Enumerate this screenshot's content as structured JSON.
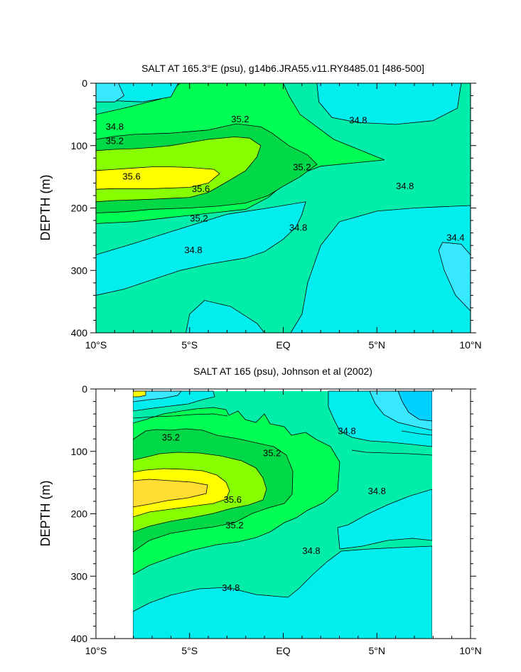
{
  "chart_data": [
    {
      "type": "contour",
      "title": "SALT AT 165.3°E (psu), g14b6.JRA55.v11.RY8485.01 [486-500]",
      "ylabel": "DEPTH (m)",
      "xlabel": "",
      "xlim": [
        -10,
        10
      ],
      "ylim": [
        0,
        400
      ],
      "y_inverted": true,
      "x_ticks": [
        {
          "value": -10,
          "label": "10°S"
        },
        {
          "value": -5,
          "label": "5°S"
        },
        {
          "value": 0,
          "label": "EQ"
        },
        {
          "value": 5,
          "label": "5°N"
        },
        {
          "value": 10,
          "label": "10°N"
        }
      ],
      "y_ticks": [
        {
          "value": 0,
          "label": "0"
        },
        {
          "value": 100,
          "label": "100"
        },
        {
          "value": 200,
          "label": "200"
        },
        {
          "value": 300,
          "label": "300"
        },
        {
          "value": 400,
          "label": "400"
        }
      ],
      "contour_interval": 0.2,
      "levels": [
        34.2,
        34.4,
        34.6,
        34.8,
        35.0,
        35.2,
        35.4,
        35.6
      ],
      "contour_labels": [
        {
          "value": "34.8",
          "x": -9.0,
          "y": 70
        },
        {
          "value": "35.2",
          "x": -9.0,
          "y": 93
        },
        {
          "value": "35.2",
          "x": -2.3,
          "y": 58
        },
        {
          "value": "34.8",
          "x": 4.0,
          "y": 60
        },
        {
          "value": "35.6",
          "x": -8.1,
          "y": 150
        },
        {
          "value": "35.6",
          "x": -4.4,
          "y": 170
        },
        {
          "value": "35.2",
          "x": 1.0,
          "y": 135
        },
        {
          "value": "34.8",
          "x": 6.5,
          "y": 165
        },
        {
          "value": "35.2",
          "x": -4.5,
          "y": 217
        },
        {
          "value": "34.8",
          "x": 0.8,
          "y": 232
        },
        {
          "value": "34.4",
          "x": 9.2,
          "y": 248
        },
        {
          "value": "34.8",
          "x": -4.8,
          "y": 268
        }
      ],
      "filled_regions": [
        {
          "level": 35.0,
          "color": "#00ff55",
          "outline": [
            [
              -10,
              50
            ],
            [
              -8.5,
              40
            ],
            [
              -6.5,
              25
            ],
            [
              -5.5,
              0
            ],
            [
              -2,
              0
            ],
            [
              0,
              0
            ],
            [
              0.3,
              20
            ],
            [
              0.9,
              50
            ],
            [
              2.7,
              90
            ],
            [
              5.4,
              123
            ],
            [
              2,
              133
            ],
            [
              0.5,
              150
            ],
            [
              -0.8,
              183
            ],
            [
              -2,
              202
            ],
            [
              -3.5,
              207
            ],
            [
              -6,
              215
            ],
            [
              -8,
              222
            ],
            [
              -10,
              225
            ]
          ]
        },
        {
          "level": 35.2,
          "color": "#00d848",
          "outline": [
            [
              -10,
              90
            ],
            [
              -9,
              85
            ],
            [
              -8,
              82
            ],
            [
              -6,
              80
            ],
            [
              -4,
              75
            ],
            [
              -2.5,
              65
            ],
            [
              -1.2,
              70
            ],
            [
              -0.6,
              80
            ],
            [
              0.3,
              100
            ],
            [
              1.3,
              115
            ],
            [
              1.8,
              130
            ],
            [
              0.9,
              150
            ],
            [
              0,
              165
            ],
            [
              -0.8,
              180
            ],
            [
              -2,
              192
            ],
            [
              -3.5,
              197
            ],
            [
              -5,
              200
            ],
            [
              -7,
              202
            ],
            [
              -8.5,
              206
            ],
            [
              -10,
              208
            ]
          ]
        },
        {
          "level": 35.4,
          "color": "#88ff00",
          "outline": [
            [
              -10,
              108
            ],
            [
              -9,
              106
            ],
            [
              -8,
              105
            ],
            [
              -7,
              103
            ],
            [
              -6,
              100
            ],
            [
              -5,
              95
            ],
            [
              -4,
              90
            ],
            [
              -2.6,
              86
            ],
            [
              -1.8,
              88
            ],
            [
              -1.2,
              100
            ],
            [
              -1.4,
              118
            ],
            [
              -2,
              140
            ],
            [
              -3,
              158
            ],
            [
              -4,
              175
            ],
            [
              -5,
              183
            ],
            [
              -7,
              186
            ],
            [
              -9,
              188
            ],
            [
              -10,
              190
            ]
          ]
        },
        {
          "level": 35.6,
          "color": "#ffff00",
          "outline": [
            [
              -10,
              140
            ],
            [
              -9,
              138
            ],
            [
              -8,
              136
            ],
            [
              -7,
              134
            ],
            [
              -6,
              134
            ],
            [
              -5,
              135
            ],
            [
              -3.7,
              138
            ],
            [
              -3.4,
              145
            ],
            [
              -4,
              160
            ],
            [
              -5,
              167
            ],
            [
              -7,
              169
            ],
            [
              -9,
              169
            ],
            [
              -10,
              170
            ]
          ]
        },
        {
          "level": 34.6,
          "color": "#00eeee",
          "outline": [
            [
              1.8,
              0
            ],
            [
              1.9,
              30
            ],
            [
              2.6,
              55
            ],
            [
              4,
              63
            ],
            [
              6,
              66
            ],
            [
              8,
              60
            ],
            [
              9.3,
              40
            ],
            [
              9.5,
              0
            ]
          ]
        },
        {
          "level": 34.6,
          "color": "#00eeee",
          "outline": [
            [
              0.4,
              400
            ],
            [
              1,
              370
            ],
            [
              1.3,
              320
            ],
            [
              2,
              260
            ],
            [
              3,
              222
            ],
            [
              5,
              205
            ],
            [
              7,
              200
            ],
            [
              8.5,
              198
            ],
            [
              10,
              196
            ],
            [
              10,
              400
            ]
          ]
        },
        {
          "level": 34.6,
          "color": "#00eeee",
          "outline": [
            [
              -10,
              340
            ],
            [
              -8.5,
              330
            ],
            [
              -7,
              315
            ],
            [
              -5.5,
              300
            ],
            [
              -4,
              290
            ],
            [
              -2,
              280
            ],
            [
              -1,
              270
            ],
            [
              0,
              250
            ],
            [
              0.7,
              230
            ],
            [
              1,
              210
            ],
            [
              1.2,
              190
            ],
            [
              -0.8,
              200
            ],
            [
              -3,
              210
            ],
            [
              -6,
              238
            ],
            [
              -8,
              257
            ],
            [
              -10,
              275
            ]
          ]
        },
        {
          "level": 34.4,
          "color": "#00eeee",
          "outline": [
            [
              -10,
              0
            ],
            [
              -10,
              400
            ],
            [
              -5.2,
              400
            ],
            [
              -5,
              370
            ],
            [
              -4.2,
              348
            ],
            [
              -2.8,
              358
            ],
            [
              -1.4,
              385
            ],
            [
              -1,
              400
            ],
            [
              -10,
              400
            ]
          ]
        },
        {
          "level": 34.4,
          "color": "#00eeee",
          "outline": [
            [
              -10,
              0
            ],
            [
              -10,
              22
            ],
            [
              -9,
              28
            ],
            [
              -7.5,
              30
            ],
            [
              -6,
              22
            ],
            [
              -5.6,
              0
            ]
          ]
        },
        {
          "level": 34.2,
          "color": "#38e8ff",
          "outline": [
            [
              -10,
              0
            ],
            [
              -10,
              30
            ],
            [
              -9,
              30
            ],
            [
              -8.5,
              20
            ],
            [
              -8.8,
              0
            ]
          ]
        },
        {
          "level": 34.2,
          "color": "#38e8ff",
          "outline": [
            [
              10,
              275
            ],
            [
              9.5,
              258
            ],
            [
              8.5,
              255
            ],
            [
              8.3,
              268
            ],
            [
              8.6,
              300
            ],
            [
              9.2,
              340
            ],
            [
              10,
              365
            ]
          ]
        }
      ],
      "colors": {
        "background": "#00eeaa",
        "34.2": "#38e8ff",
        "34.4": "#00eeee",
        "34.6": "#00eeee",
        "34.8": "#00eeaa",
        "35.0": "#00ff55",
        "35.2": "#00d848",
        "35.4": "#88ff00",
        "35.6": "#ffff00",
        "35.8": "#ffdd33"
      }
    },
    {
      "type": "contour",
      "title": "SALT AT 165 (psu), Johnson et al (2002)",
      "ylabel": "DEPTH (m)",
      "xlabel": "",
      "xlim": [
        -10,
        10
      ],
      "ylim": [
        0,
        400
      ],
      "y_inverted": true,
      "data_extent": {
        "x": [
          -8,
          8
        ],
        "y": [
          5,
          400
        ]
      },
      "x_ticks": [
        {
          "value": -10,
          "label": "10°S"
        },
        {
          "value": -5,
          "label": "5°S"
        },
        {
          "value": 0,
          "label": "EQ"
        },
        {
          "value": 5,
          "label": "5°N"
        },
        {
          "value": 10,
          "label": "10°N"
        }
      ],
      "y_ticks": [
        {
          "value": 0,
          "label": "0"
        },
        {
          "value": 100,
          "label": "100"
        },
        {
          "value": 200,
          "label": "200"
        },
        {
          "value": 300,
          "label": "300"
        },
        {
          "value": 400,
          "label": "400"
        }
      ],
      "contour_interval": 0.2,
      "levels": [
        34.0,
        34.2,
        34.4,
        34.6,
        34.8,
        35.0,
        35.2,
        35.4,
        35.6,
        35.8
      ],
      "contour_labels": [
        {
          "value": "35.2",
          "x": -6.0,
          "y": 78
        },
        {
          "value": "35.2",
          "x": -0.6,
          "y": 103
        },
        {
          "value": "34.8",
          "x": 3.4,
          "y": 68
        },
        {
          "value": "35.6",
          "x": -2.7,
          "y": 178
        },
        {
          "value": "34.8",
          "x": 5.0,
          "y": 164
        },
        {
          "value": "35.2",
          "x": -2.6,
          "y": 219
        },
        {
          "value": "34.8",
          "x": 1.5,
          "y": 260
        },
        {
          "value": "34.8",
          "x": -2.8,
          "y": 319
        }
      ],
      "colors": {
        "background": "#00eeaa",
        "34.2": "#00d0ff",
        "34.4": "#38e8ff",
        "34.6": "#00eeee",
        "35.0": "#00ff55",
        "35.2": "#00d848",
        "35.4": "#88ff00",
        "35.6": "#ffff00",
        "35.8": "#ffdd33"
      }
    }
  ]
}
